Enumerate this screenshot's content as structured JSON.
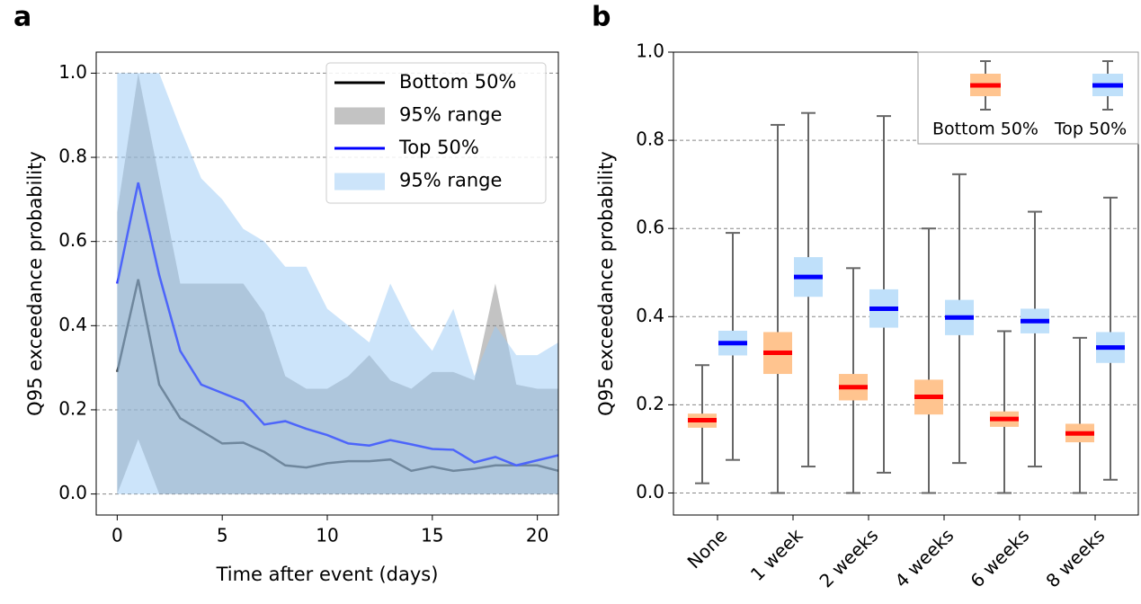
{
  "chart_data": [
    {
      "type": "line",
      "panel_label": "a",
      "xlabel": "Time after event (days)",
      "ylabel": "Q95 exceedance probability",
      "x": [
        0,
        1,
        2,
        3,
        4,
        5,
        6,
        7,
        8,
        9,
        10,
        11,
        12,
        13,
        14,
        15,
        16,
        17,
        18,
        19,
        20,
        21
      ],
      "xlim": [
        -1,
        21
      ],
      "ylim": [
        -0.05,
        1.05
      ],
      "xticks": [
        0,
        5,
        10,
        15,
        20
      ],
      "yticks": [
        {
          "value": 0,
          "label": "0.0"
        },
        0.2,
        0.4,
        0.6,
        0.8,
        {
          "value": 1,
          "label": "1.0"
        }
      ],
      "grid": true,
      "legend": "upper right",
      "series": [
        {
          "name": "Bottom 50%",
          "kind": "line",
          "color": "#000000",
          "values": [
            0.29,
            0.51,
            0.26,
            0.18,
            0.15,
            0.12,
            0.122,
            0.1,
            0.068,
            0.063,
            0.073,
            0.078,
            0.078,
            0.082,
            0.055,
            0.065,
            0.055,
            0.06,
            0.068,
            0.068,
            0.068,
            0.055
          ]
        },
        {
          "name": "95% range",
          "kind": "band",
          "color": "#888888",
          "lower": [
            0,
            0.13,
            0,
            0,
            0,
            0,
            0,
            0,
            0,
            0,
            0,
            0,
            0,
            0,
            0,
            0,
            0,
            0,
            0,
            0,
            0,
            0
          ],
          "upper": [
            0.67,
            1.0,
            0.75,
            0.5,
            0.5,
            0.5,
            0.5,
            0.43,
            0.28,
            0.25,
            0.25,
            0.28,
            0.33,
            0.27,
            0.25,
            0.29,
            0.29,
            0.27,
            0.5,
            0.26,
            0.25,
            0.25
          ]
        },
        {
          "name": "Top 50%",
          "kind": "line",
          "color": "#0000ff",
          "values": [
            0.5,
            0.74,
            0.52,
            0.34,
            0.26,
            0.24,
            0.22,
            0.165,
            0.173,
            0.155,
            0.14,
            0.12,
            0.115,
            0.128,
            0.118,
            0.107,
            0.105,
            0.075,
            0.088,
            0.068,
            0.08,
            0.092
          ]
        },
        {
          "name": "95% range",
          "kind": "band",
          "color": "#99c9f5",
          "lower": [
            0,
            0,
            0,
            0,
            0,
            0,
            0,
            0,
            0,
            0,
            0,
            0,
            0,
            0,
            0,
            0,
            0,
            0,
            0,
            0,
            0,
            0
          ],
          "upper": [
            1.0,
            1.0,
            1.0,
            0.87,
            0.75,
            0.7,
            0.63,
            0.6,
            0.54,
            0.54,
            0.44,
            0.4,
            0.36,
            0.5,
            0.4,
            0.34,
            0.44,
            0.28,
            0.4,
            0.33,
            0.33,
            0.36
          ]
        }
      ]
    },
    {
      "type": "box",
      "panel_label": "b",
      "ylabel": "Q95 exceedance probability",
      "categories": [
        "None",
        "1 week",
        "2 weeks",
        "4 weeks",
        "6 weeks",
        "8 weeks"
      ],
      "ylim": [
        -0.05,
        1.0
      ],
      "yticks": [
        {
          "value": 0,
          "label": "0.0"
        },
        0.2,
        0.4,
        0.6,
        0.8,
        {
          "value": 1,
          "label": "1.0"
        }
      ],
      "grid": true,
      "legend": "upper right",
      "series": [
        {
          "name": "Bottom 50%",
          "color": "#ffc48f",
          "median_color": "#ff0000",
          "whislo": [
            0.022,
            0,
            0,
            0,
            0,
            0
          ],
          "q1": [
            0.148,
            0.27,
            0.21,
            0.178,
            0.15,
            0.115
          ],
          "med": [
            0.165,
            0.318,
            0.24,
            0.218,
            0.168,
            0.135
          ],
          "q3": [
            0.18,
            0.365,
            0.27,
            0.257,
            0.185,
            0.157
          ],
          "whishi": [
            0.29,
            0.835,
            0.51,
            0.6,
            0.367,
            0.352
          ]
        },
        {
          "name": "Top 50%",
          "color": "#bfe0fa",
          "median_color": "#0000ff",
          "whislo": [
            0.075,
            0.06,
            0.046,
            0.068,
            0.06,
            0.03
          ],
          "q1": [
            0.312,
            0.445,
            0.375,
            0.358,
            0.362,
            0.295
          ],
          "med": [
            0.34,
            0.49,
            0.418,
            0.398,
            0.39,
            0.33
          ],
          "q3": [
            0.368,
            0.535,
            0.462,
            0.438,
            0.418,
            0.365
          ],
          "whishi": [
            0.59,
            0.862,
            0.855,
            0.723,
            0.638,
            0.67
          ]
        }
      ]
    }
  ]
}
